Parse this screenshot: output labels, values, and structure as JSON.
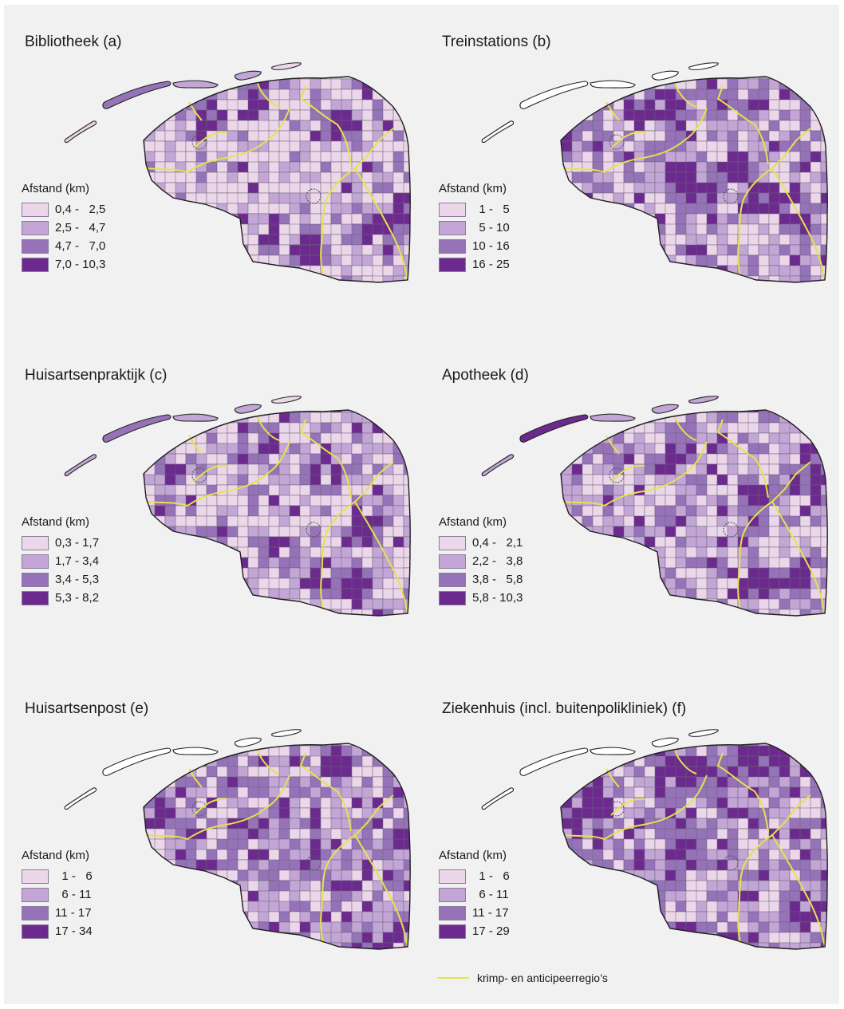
{
  "colors": {
    "class1": "#ecd7ea",
    "class2": "#c3a6d6",
    "class3": "#9672b8",
    "class4": "#6c2a8e",
    "boundary": "#666677",
    "region_line": "#e5e34a",
    "background": "#f1f1f2"
  },
  "panels": [
    {
      "title": "Bibliotheek (a)",
      "legend_title": "Afstand (km)",
      "classes": [
        "0,4 -   2,5",
        "2,5 -   4,7",
        "4,7 -   7,0",
        "7,0 - 10,3"
      ],
      "island_classes": [
        1,
        3,
        2,
        2,
        1
      ]
    },
    {
      "title": "Treinstations (b)",
      "legend_title": "Afstand (km)",
      "classes": [
        "  1 -   5",
        "  5 - 10",
        "10 - 16",
        "16 - 25"
      ],
      "island_classes": [
        0,
        0,
        0,
        0,
        0
      ]
    },
    {
      "title": "Huisartsenpraktijk (c)",
      "legend_title": "Afstand (km)",
      "classes": [
        "0,3 - 1,7",
        "1,7 - 3,4",
        "3,4 - 5,3",
        "5,3 - 8,2"
      ],
      "island_classes": [
        2,
        3,
        2,
        2,
        1
      ]
    },
    {
      "title": "Apotheek (d)",
      "legend_title": "Afstand (km)",
      "classes": [
        "0,4 -   2,1",
        "2,2 -   3,8",
        "3,8 -   5,8",
        "5,8 - 10,3"
      ],
      "island_classes": [
        2,
        4,
        2,
        2,
        2
      ]
    },
    {
      "title": "Huisartsenpost (e)",
      "legend_title": "Afstand (km)",
      "classes": [
        "  1 -   6",
        "  6 - 11",
        "11 - 17",
        "17 - 34"
      ],
      "island_classes": [
        0,
        0,
        0,
        0,
        0
      ]
    },
    {
      "title": "Ziekenhuis (incl. buitenpolikliniek) (f)",
      "legend_title": "Afstand (km)",
      "classes": [
        "  1 -   6",
        "  6 - 11",
        "11 - 17",
        "17 - 29"
      ],
      "island_classes": [
        0,
        0,
        0,
        0,
        0
      ]
    }
  ],
  "footer": {
    "line_label": "krimp- en anticipeerregio’s"
  }
}
